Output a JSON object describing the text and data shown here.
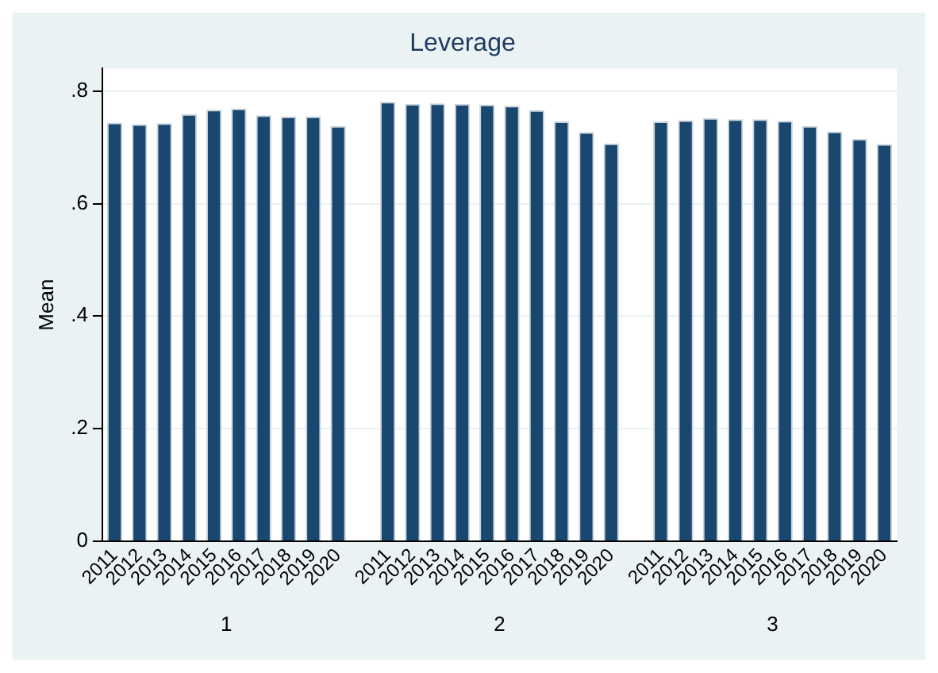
{
  "chart_data": {
    "type": "bar",
    "title": "Leverage",
    "ylabel": "Mean",
    "categories": [
      "2011",
      "2012",
      "2013",
      "2014",
      "2015",
      "2016",
      "2017",
      "2018",
      "2019",
      "2020",
      null,
      "2011",
      "2012",
      "2013",
      "2014",
      "2015",
      "2016",
      "2017",
      "2018",
      "2019",
      "2020",
      null,
      "2011",
      "2012",
      "2013",
      "2014",
      "2015",
      "2016",
      "2017",
      "2018",
      "2019",
      "2020"
    ],
    "values": [
      0.744,
      0.741,
      0.743,
      0.759,
      0.767,
      0.769,
      0.757,
      0.755,
      0.755,
      0.738,
      null,
      0.781,
      0.777,
      0.778,
      0.777,
      0.776,
      0.774,
      0.766,
      0.746,
      0.727,
      0.707,
      null,
      0.746,
      0.748,
      0.752,
      0.75,
      0.75,
      0.747,
      0.738,
      0.728,
      0.715,
      0.706
    ],
    "color": "#1a476f",
    "ylim": [
      0,
      0.84
    ],
    "yticks": [
      0,
      {
        "value": 0.2,
        "label": ".2"
      },
      {
        "value": 0.4,
        "label": ".4"
      },
      {
        "value": 0.6,
        "label": ".6"
      },
      {
        "value": 0.8,
        "label": ".8"
      }
    ],
    "grid": "y",
    "annotations": [
      "1",
      "2",
      "3"
    ]
  }
}
